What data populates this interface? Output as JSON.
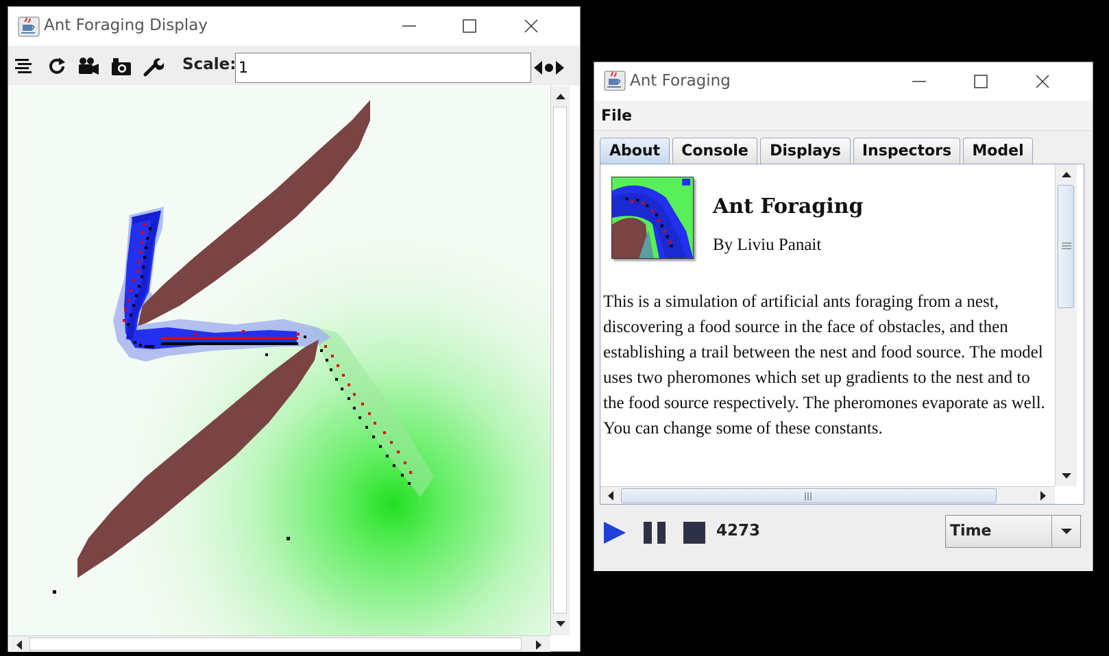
{
  "display_window": {
    "title": "Ant Foraging Display",
    "toolbar": {
      "icons": [
        "layers-icon",
        "refresh-icon",
        "movie-camera-icon",
        "snapshot-camera-icon",
        "wrench-icon",
        "zoom-arrows-icon"
      ],
      "scale_label": "Scale:",
      "scale_value": "1"
    },
    "field": {
      "colors": {
        "background": "#f4fbf4",
        "obstacle": "#7a4444",
        "home_pheromone": "#1f2bea",
        "food_pheromone": "#00e000",
        "ant_with_food": "#e00000",
        "ant_searching": "#000000"
      }
    }
  },
  "foraging_window": {
    "title": "Ant Foraging",
    "menu": [
      "File"
    ],
    "tabs": [
      "About",
      "Console",
      "Displays",
      "Inspectors",
      "Model"
    ],
    "active_tab": "About",
    "about": {
      "title": "Ant Foraging",
      "author": "By Liviu Panait",
      "description": "This is a simulation of artificial ants foraging from a nest, discovering a food source in the face of obstacles, and then establishing a trail between the nest and food source. The model uses two pheromones which set up gradients to the nest and to the food source respectively.  The pheromones evaporate as well. You can change some of these constants."
    },
    "controls": {
      "step_count": "4273",
      "time_mode": "Time"
    }
  }
}
